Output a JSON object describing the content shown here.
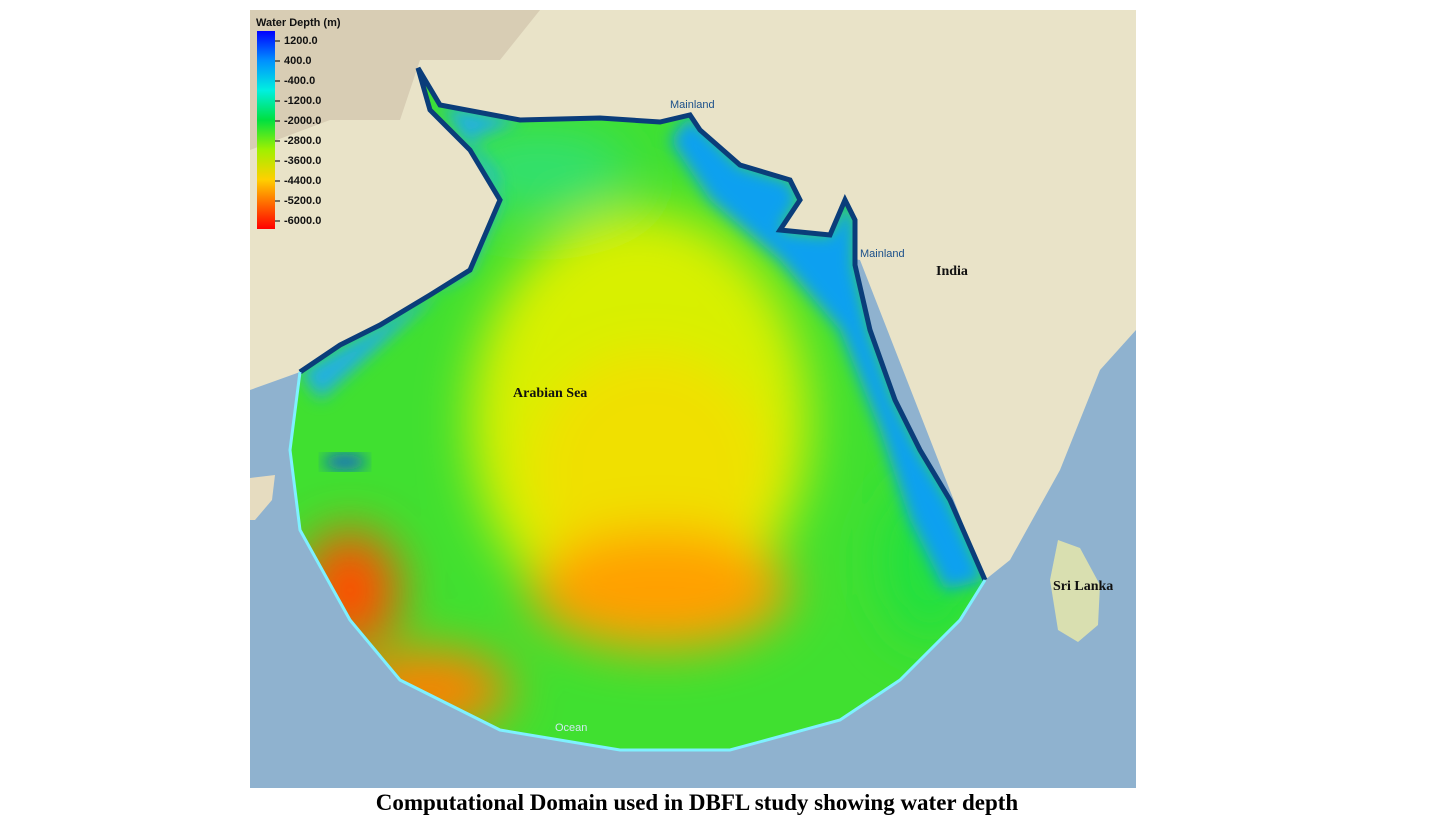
{
  "legend": {
    "title": "Water Depth (m)",
    "labels": [
      "1200.0",
      "400.0",
      "-400.0",
      "-1200.0",
      "-2000.0",
      "-2800.0",
      "-3600.0",
      "-4400.0",
      "-5200.0",
      "-6000.0"
    ]
  },
  "map_labels": [
    "Mainland",
    "Mainland",
    "India",
    "Arabian Sea",
    "Sri Lanka",
    "Ocean"
  ],
  "caption": "Computational Domain used in DBFL study showing water depth"
}
